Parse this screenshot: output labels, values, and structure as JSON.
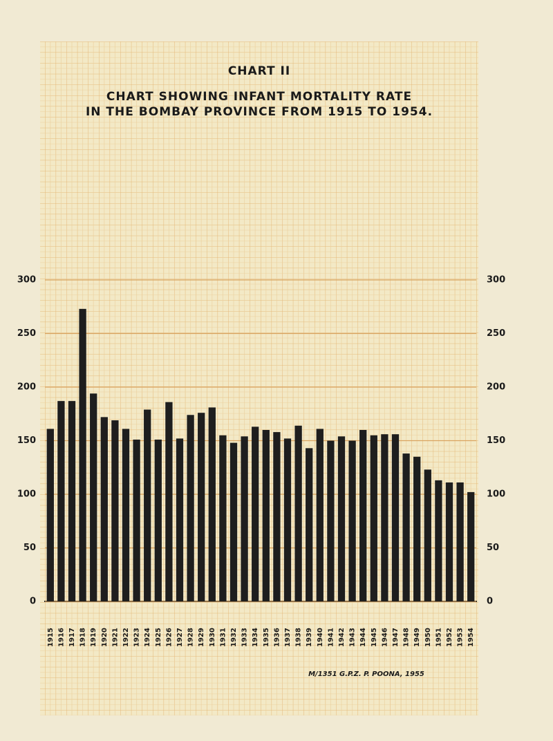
{
  "chart_data": {
    "type": "bar",
    "title": "CHART II",
    "subtitle": "CHART SHOWING INFANT MORTALITY RATE",
    "subtitle2": "IN THE BOMBAY PROVINCE FROM 1915 TO 1954.",
    "footer": "M/1351 G.P.Z. P. POONA, 1955",
    "categories": [
      "1915",
      "1916",
      "1917",
      "1918",
      "1919",
      "1920",
      "1921",
      "1922",
      "1923",
      "1924",
      "1925",
      "1926",
      "1927",
      "1928",
      "1929",
      "1930",
      "1931",
      "1932",
      "1933",
      "1934",
      "1935",
      "1936",
      "1937",
      "1938",
      "1939",
      "1940",
      "1941",
      "1942",
      "1943",
      "1944",
      "1945",
      "1946",
      "1947",
      "1948",
      "1949",
      "1950",
      "1951",
      "1952",
      "1953",
      "1954"
    ],
    "values": [
      161,
      187,
      187,
      273,
      194,
      172,
      169,
      161,
      151,
      179,
      151,
      186,
      152,
      174,
      176,
      181,
      155,
      148,
      154,
      163,
      160,
      158,
      152,
      164,
      143,
      161,
      150,
      154,
      150,
      160,
      155,
      156,
      156,
      138,
      135,
      123,
      113,
      111,
      111,
      102
    ],
    "color": "#1e1e1e",
    "ylim": [
      0,
      300
    ],
    "yticks": [
      0,
      50,
      100,
      150,
      200,
      250,
      300
    ],
    "grid": true
  }
}
